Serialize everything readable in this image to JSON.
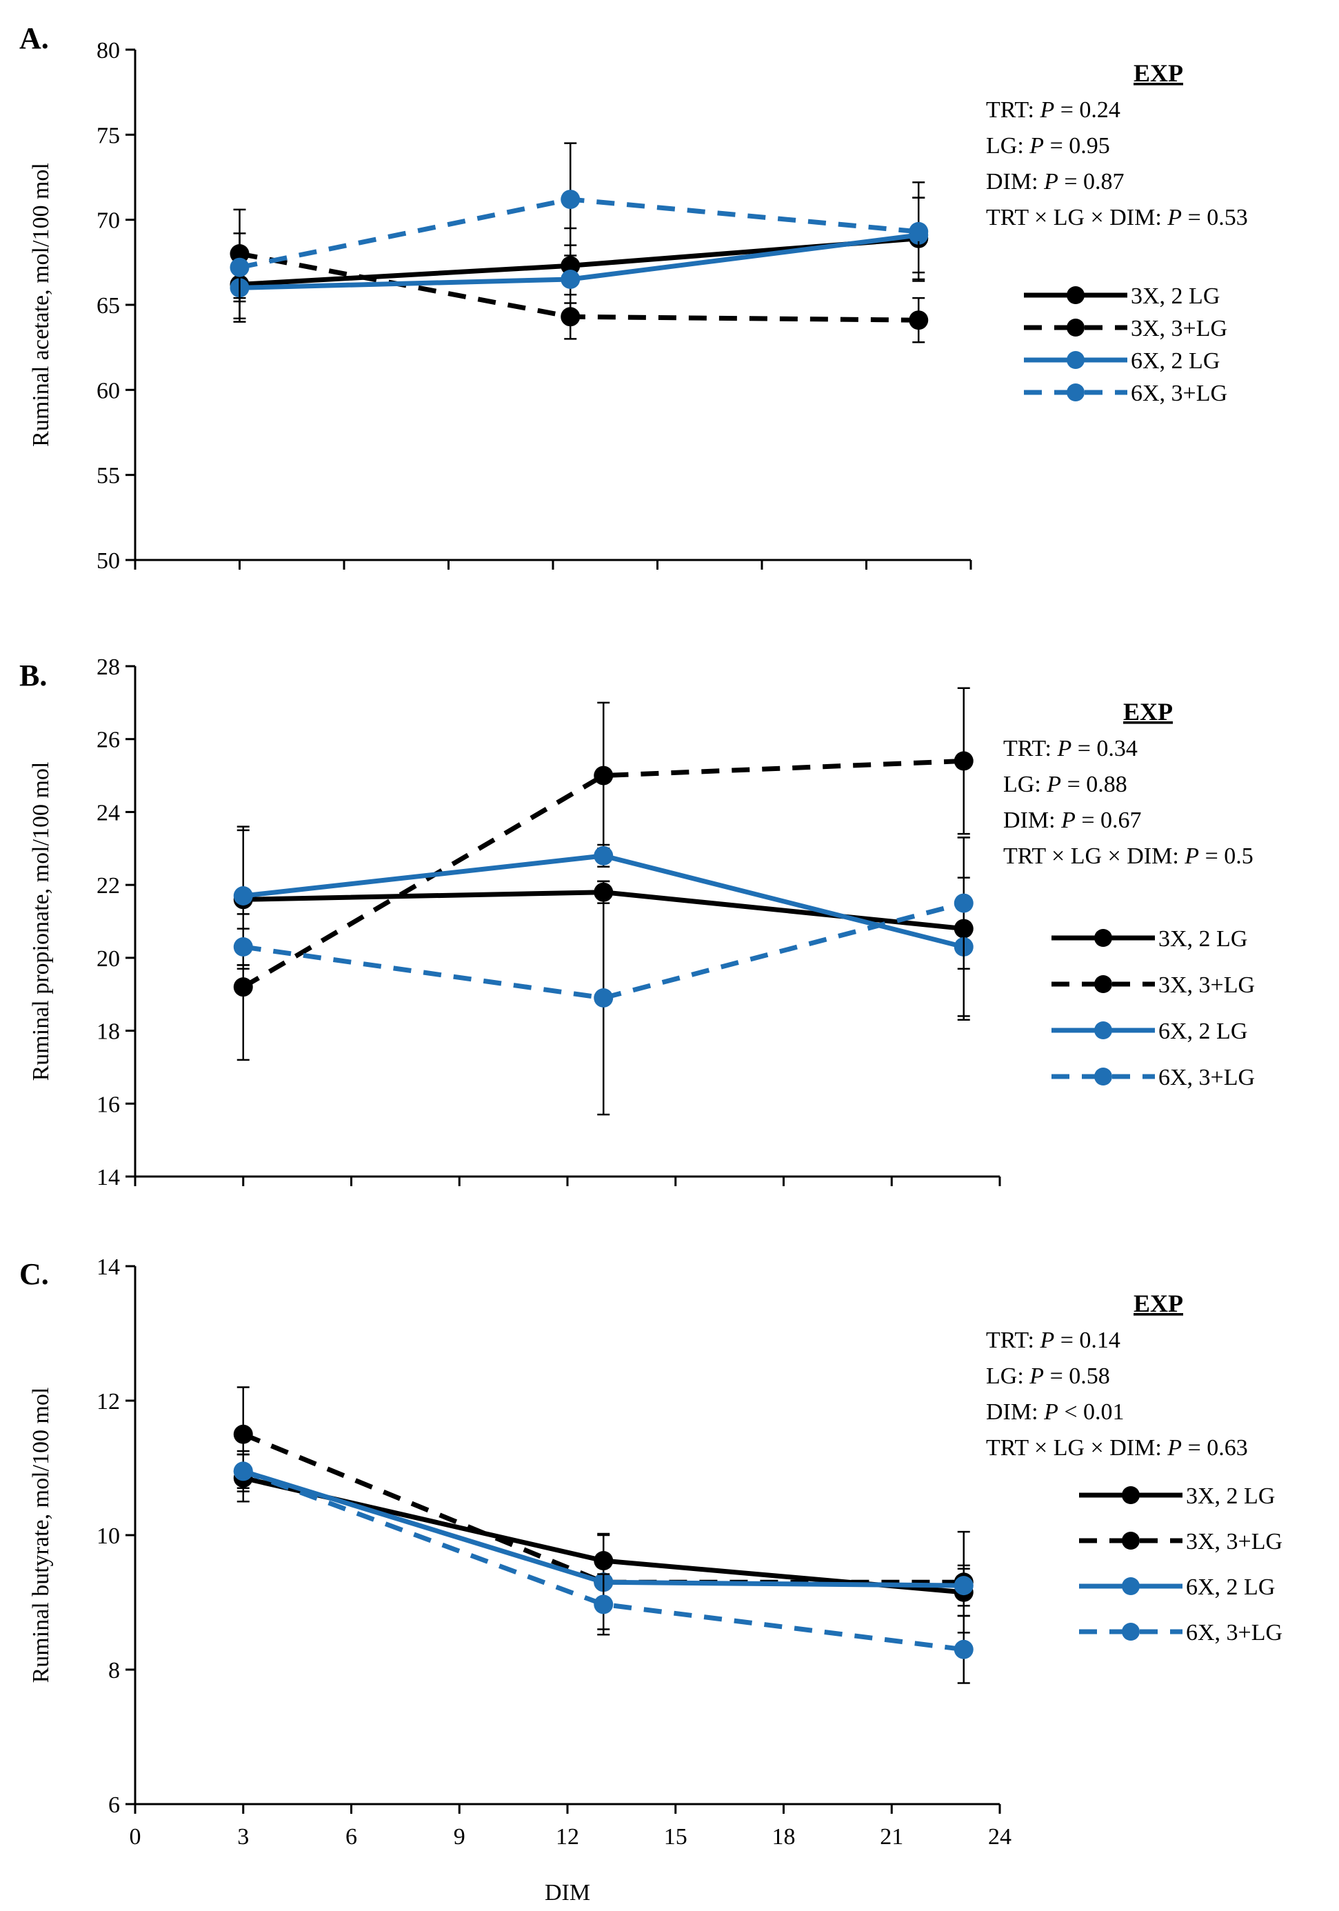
{
  "figure": {
    "shared_xlabel": "DIM",
    "x_ticks": [
      0,
      3,
      6,
      9,
      12,
      15,
      18,
      21,
      24
    ],
    "colors": {
      "black": "#000000",
      "blue": "#1f6fb4"
    },
    "legend_title": ""
  },
  "chart_data": [
    {
      "type": "line",
      "panel_label": "A.",
      "title": "",
      "xlabel": "DIM",
      "ylabel": "Ruminal acetate, mol/100 mol",
      "xlim": [
        0,
        24
      ],
      "ylim": [
        50,
        80
      ],
      "y_ticks": [
        50,
        55,
        60,
        65,
        70,
        75,
        80
      ],
      "x": [
        3,
        12.5,
        22.5
      ],
      "stats": {
        "heading": "EXP",
        "lines": [
          [
            "TRT: ",
            "P",
            " = 0.24"
          ],
          [
            "LG: ",
            "P",
            " = 0.95"
          ],
          [
            "DIM: ",
            "P",
            " = 0.87"
          ],
          [
            "TRT × LG × DIM: ",
            "P",
            " = 0.53"
          ]
        ]
      },
      "series": [
        {
          "name": "3X, 2 LG",
          "color": "#000000",
          "dashed": false,
          "values": [
            66.2,
            67.3,
            68.9
          ],
          "err": [
            2.0,
            2.2,
            2.4
          ]
        },
        {
          "name": "3X, 3+LG",
          "color": "#000000",
          "dashed": true,
          "values": [
            68.0,
            64.3,
            64.1
          ],
          "err": [
            2.6,
            1.3,
            1.3
          ]
        },
        {
          "name": "6X, 2 LG",
          "color": "#1f6fb4",
          "dashed": false,
          "values": [
            66.0,
            66.5,
            69.1
          ],
          "err": [
            2.0,
            2.0,
            2.2
          ]
        },
        {
          "name": "6X, 3+LG",
          "color": "#1f6fb4",
          "dashed": true,
          "values": [
            67.2,
            71.2,
            69.3
          ],
          "err": [
            2.0,
            3.3,
            2.9
          ]
        }
      ]
    },
    {
      "type": "line",
      "panel_label": "B.",
      "title": "",
      "xlabel": "DIM",
      "ylabel": "Ruminal propionate, mol/100 mol",
      "xlim": [
        0,
        24
      ],
      "ylim": [
        14,
        28
      ],
      "y_ticks": [
        14,
        16,
        18,
        20,
        22,
        24,
        26,
        28
      ],
      "x": [
        3,
        13,
        23
      ],
      "stats": {
        "heading": "EXP",
        "lines": [
          [
            "TRT: ",
            "P",
            " = 0.34"
          ],
          [
            "LG: ",
            "P",
            " = 0.88"
          ],
          [
            "DIM: ",
            "P",
            " = 0.67"
          ],
          [
            "TRT × LG × DIM: ",
            "P",
            " = 0.5"
          ]
        ]
      },
      "series": [
        {
          "name": "3X, 2 LG",
          "color": "#000000",
          "dashed": false,
          "values": [
            21.6,
            21.8,
            20.8
          ],
          "err": [
            1.9,
            0.3,
            2.5
          ]
        },
        {
          "name": "3X, 3+LG",
          "color": "#000000",
          "dashed": true,
          "values": [
            19.2,
            25.0,
            25.4
          ],
          "err": [
            2.0,
            2.0,
            2.0
          ]
        },
        {
          "name": "6X, 2 LG",
          "color": "#1f6fb4",
          "dashed": false,
          "values": [
            21.7,
            22.8,
            20.3
          ],
          "err": [
            1.9,
            0.3,
            1.9
          ]
        },
        {
          "name": "6X, 3+LG",
          "color": "#1f6fb4",
          "dashed": true,
          "values": [
            20.3,
            18.9,
            21.5
          ],
          "err": [
            0.5,
            3.2,
            1.8
          ]
        }
      ]
    },
    {
      "type": "line",
      "panel_label": "C.",
      "title": "",
      "xlabel": "DIM",
      "ylabel": "Ruminal butyrate, mol/100 mol",
      "xlim": [
        0,
        24
      ],
      "ylim": [
        6,
        14
      ],
      "y_ticks": [
        6,
        8,
        10,
        12,
        14
      ],
      "x": [
        3,
        13,
        23
      ],
      "stats": {
        "heading": "EXP",
        "lines": [
          [
            "TRT: ",
            "P",
            " = 0.14"
          ],
          [
            "LG: ",
            "P",
            " = 0.58"
          ],
          [
            "DIM: ",
            "P",
            " < 0.01"
          ],
          [
            "TRT × LG × DIM: ",
            "P",
            " = 0.63"
          ]
        ]
      },
      "series": [
        {
          "name": "3X, 2 LG",
          "color": "#000000",
          "dashed": false,
          "values": [
            10.85,
            9.62,
            9.15
          ],
          "err": [
            0.35,
            0.4,
            0.35
          ]
        },
        {
          "name": "3X, 3+LG",
          "color": "#000000",
          "dashed": true,
          "values": [
            11.5,
            9.3,
            9.3
          ],
          "err": [
            0.7,
            0.7,
            0.75
          ]
        },
        {
          "name": "6X, 2 LG",
          "color": "#1f6fb4",
          "dashed": false,
          "values": [
            10.95,
            9.3,
            9.25
          ],
          "err": [
            0.25,
            0.35,
            0.3
          ]
        },
        {
          "name": "6X, 3+LG",
          "color": "#1f6fb4",
          "dashed": true,
          "values": [
            10.95,
            8.97,
            8.3
          ],
          "err": [
            0.3,
            0.45,
            0.5
          ]
        }
      ]
    }
  ]
}
